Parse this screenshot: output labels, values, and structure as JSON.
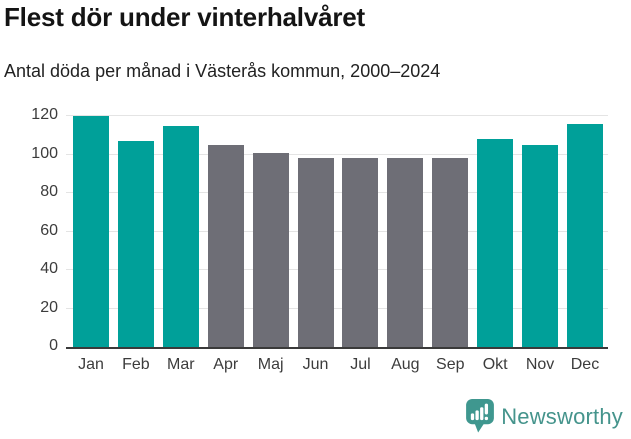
{
  "chart_data": {
    "type": "bar",
    "title": "Flest dör under vinterhalvåret",
    "subtitle": "Antal döda per månad i Västerås kommun, 2000–2024",
    "categories": [
      "Jan",
      "Feb",
      "Mar",
      "Apr",
      "Maj",
      "Jun",
      "Jul",
      "Aug",
      "Sep",
      "Okt",
      "Nov",
      "Dec"
    ],
    "values": [
      120,
      107,
      115,
      105,
      101,
      98,
      98,
      98,
      98,
      108,
      105,
      116
    ],
    "highlighted": [
      true,
      true,
      true,
      false,
      false,
      false,
      false,
      false,
      false,
      true,
      true,
      true
    ],
    "xlabel": "",
    "ylabel": "",
    "ylim": [
      0,
      120
    ],
    "yticks": [
      0,
      20,
      40,
      60,
      80,
      100,
      120
    ],
    "grid": "horizontal-light",
    "legend": "none",
    "colors": {
      "highlight_teal": "#00a099",
      "muted_gray": "#6e6e76",
      "gridline": "#e4e4e4",
      "axis_line": "#3a3a3a",
      "tick_text": "#3c3c3c"
    }
  },
  "footer": {
    "brand": "Newsworthy",
    "brand_color": "#45948c",
    "logo_icon": "newsworthy-speech-bubble-bar-chart-icon"
  }
}
